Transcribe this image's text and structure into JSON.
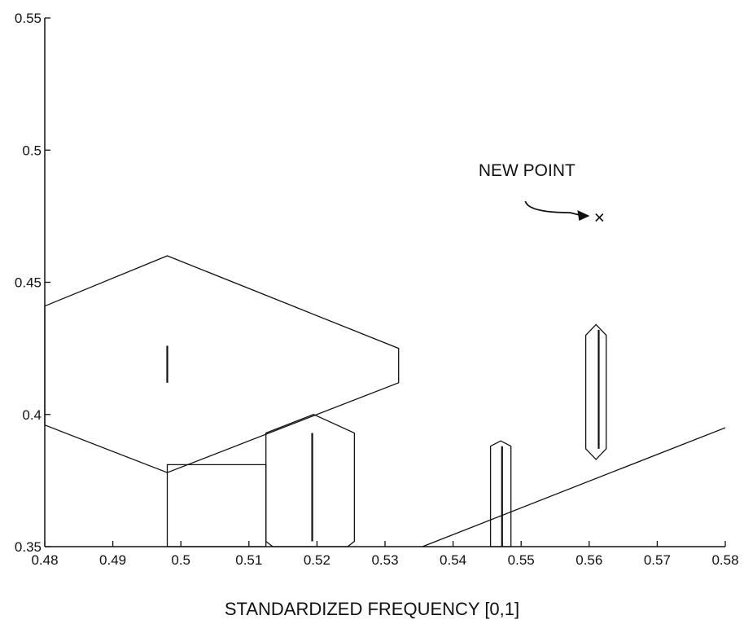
{
  "chart_data": {
    "type": "scatter",
    "title": "",
    "xlabel": "STANDARDIZED FREQUENCY [0,1]",
    "ylabel": "",
    "xlim": [
      0.48,
      0.58
    ],
    "ylim": [
      0.35,
      0.55
    ],
    "x_ticks": [
      "0.48",
      "0.49",
      "0.5",
      "0.51",
      "0.52",
      "0.53",
      "0.54",
      "0.55",
      "0.56",
      "0.57",
      "0.58"
    ],
    "y_ticks": [
      "0.35",
      "0.4",
      "0.45",
      "0.5",
      "0.55"
    ],
    "grid": false,
    "regions": [
      {
        "kind": "hexagon",
        "points": [
          [
            0.48,
            0.441
          ],
          [
            0.498,
            0.46
          ],
          [
            0.532,
            0.425
          ],
          [
            0.532,
            0.412
          ],
          [
            0.498,
            0.378
          ],
          [
            0.48,
            0.396
          ]
        ]
      },
      {
        "kind": "rectangle",
        "points": [
          [
            0.498,
            0.35
          ],
          [
            0.498,
            0.381
          ],
          [
            0.5125,
            0.381
          ],
          [
            0.5125,
            0.35
          ]
        ]
      },
      {
        "kind": "hexagon",
        "points": [
          [
            0.5125,
            0.393
          ],
          [
            0.5195,
            0.4
          ],
          [
            0.5255,
            0.393
          ],
          [
            0.5255,
            0.352
          ],
          [
            0.5245,
            0.35
          ],
          [
            0.5135,
            0.35
          ],
          [
            0.5125,
            0.352
          ]
        ]
      },
      {
        "kind": "hexagon",
        "points": [
          [
            0.5455,
            0.388
          ],
          [
            0.547,
            0.39
          ],
          [
            0.5485,
            0.388
          ],
          [
            0.5485,
            0.35
          ],
          [
            0.5455,
            0.35
          ]
        ]
      },
      {
        "kind": "hexagon",
        "points": [
          [
            0.5595,
            0.43
          ],
          [
            0.561,
            0.434
          ],
          [
            0.5625,
            0.43
          ],
          [
            0.5625,
            0.387
          ],
          [
            0.561,
            0.383
          ],
          [
            0.5595,
            0.387
          ]
        ]
      },
      {
        "kind": "line",
        "points": [
          [
            0.5355,
            0.35
          ],
          [
            0.58,
            0.395
          ]
        ]
      }
    ],
    "segments": [
      {
        "x": 0.498,
        "y": [
          0.412,
          0.426
        ]
      },
      {
        "x": 0.5193,
        "y": [
          0.352,
          0.393
        ]
      },
      {
        "x": 0.5472,
        "y": [
          0.35,
          0.388
        ]
      },
      {
        "x": 0.5614,
        "y": [
          0.387,
          0.432
        ]
      }
    ],
    "new_point": {
      "x": 0.5615,
      "y": 0.4745,
      "label": "NEW POINT"
    }
  }
}
